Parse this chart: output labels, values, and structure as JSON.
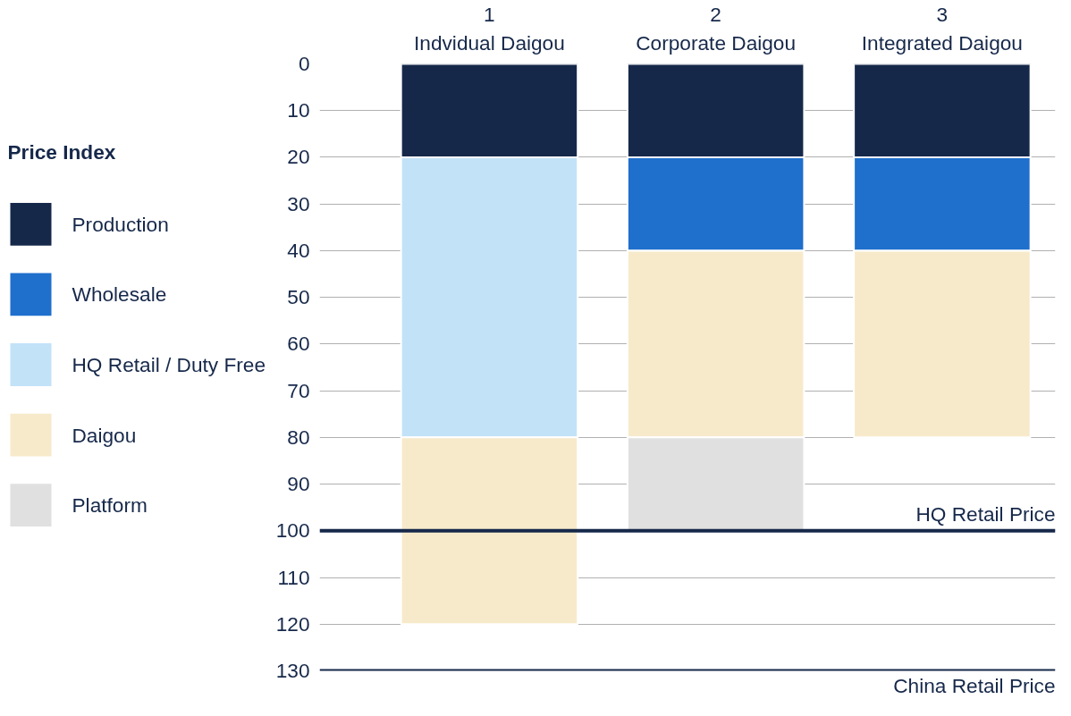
{
  "chart_data": {
    "type": "bar",
    "stacked": true,
    "legend_title": "Price Index",
    "legend": "left",
    "grid": "y",
    "categories": [
      "1\nIndvidual Daigou",
      "2\nCorporate Daigou",
      "3\nIntegrated Daigou"
    ],
    "series": [
      {
        "name": "Production",
        "color": "#16284a",
        "values": [
          20,
          20,
          20
        ]
      },
      {
        "name": "Wholesale",
        "color": "#1f6fcc",
        "values": [
          null,
          20,
          20
        ]
      },
      {
        "name": "HQ Retail / Duty Free",
        "color": "#c2e2f8",
        "values": [
          60,
          null,
          null
        ]
      },
      {
        "name": "Daigou",
        "color": "#f7eacb",
        "values": [
          40,
          40,
          40
        ]
      },
      {
        "name": "Platform",
        "color": "#e0e0e0",
        "values": [
          null,
          20,
          null
        ]
      }
    ],
    "ylim": [
      130,
      0
    ],
    "yticks": [
      0,
      10,
      20,
      30,
      40,
      50,
      60,
      70,
      80,
      90,
      100,
      110,
      120,
      130
    ],
    "ref_lines": [
      {
        "axis": "y",
        "value": 100,
        "label": "HQ Retail Price",
        "color": "#16284a"
      },
      {
        "axis": "y",
        "value": 130,
        "label": "China Retail Price",
        "color": "#16284a"
      }
    ]
  }
}
